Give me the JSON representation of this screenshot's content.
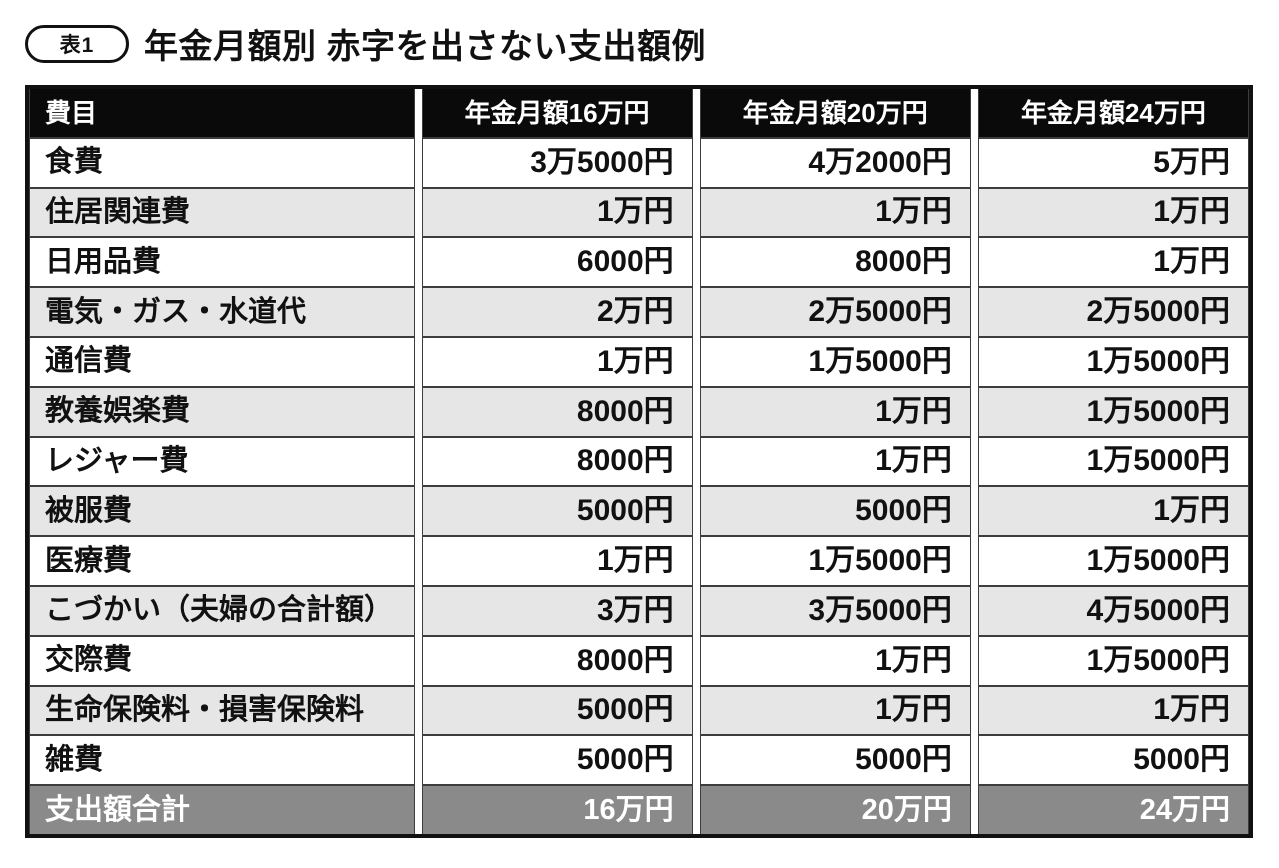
{
  "title": {
    "badge_label": "表1",
    "text": "年金月額別 赤字を出さない支出額例"
  },
  "colors": {
    "header_bg": "#0a0a0a",
    "header_text": "#ffffff",
    "alt_row_bg": "#e6e6e6",
    "total_row_bg": "#8a8a8a",
    "total_row_text": "#ffffff",
    "grid_line": "#3d3d3d",
    "outer_border": "#111111"
  },
  "chart_data": {
    "type": "table",
    "title": "年金月額別 赤字を出さない支出額例",
    "columns": [
      "費目",
      "年金月額16万円",
      "年金月額20万円",
      "年金月額24万円"
    ],
    "rows": [
      {
        "label": "食費",
        "values": [
          "3万5000円",
          "4万2000円",
          "5万円"
        ]
      },
      {
        "label": "住居関連費",
        "values": [
          "1万円",
          "1万円",
          "1万円"
        ]
      },
      {
        "label": "日用品費",
        "values": [
          "6000円",
          "8000円",
          "1万円"
        ]
      },
      {
        "label": "電気・ガス・水道代",
        "values": [
          "2万円",
          "2万5000円",
          "2万5000円"
        ]
      },
      {
        "label": "通信費",
        "values": [
          "1万円",
          "1万5000円",
          "1万5000円"
        ]
      },
      {
        "label": "教養娯楽費",
        "values": [
          "8000円",
          "1万円",
          "1万5000円"
        ]
      },
      {
        "label": "レジャー費",
        "values": [
          "8000円",
          "1万円",
          "1万5000円"
        ]
      },
      {
        "label": "被服費",
        "values": [
          "5000円",
          "5000円",
          "1万円"
        ]
      },
      {
        "label": "医療費",
        "values": [
          "1万円",
          "1万5000円",
          "1万5000円"
        ]
      },
      {
        "label": "こづかい（夫婦の合計額）",
        "values": [
          "3万円",
          "3万5000円",
          "4万5000円"
        ]
      },
      {
        "label": "交際費",
        "values": [
          "8000円",
          "1万円",
          "1万5000円"
        ]
      },
      {
        "label": "生命保険料・損害保険料",
        "values": [
          "5000円",
          "1万円",
          "1万円"
        ]
      },
      {
        "label": "雑費",
        "values": [
          "5000円",
          "5000円",
          "5000円"
        ]
      }
    ],
    "total_row": {
      "label": "支出額合計",
      "values": [
        "16万円",
        "20万円",
        "24万円"
      ]
    }
  }
}
